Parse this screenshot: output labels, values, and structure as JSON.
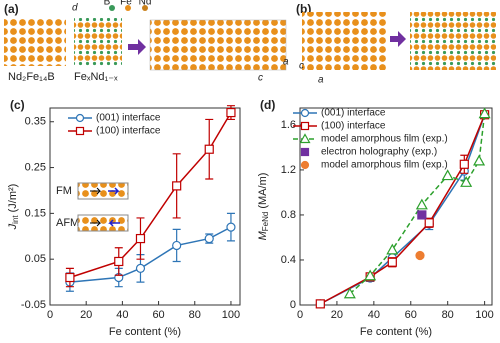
{
  "structures": {
    "a": {
      "label": "(a)",
      "elements": [
        "B",
        "Fe",
        "Nd"
      ],
      "spacing": "d",
      "phases": [
        "Nd₂Fe₁₄B",
        "FeₓNd₁₋ₓ"
      ],
      "axes": [
        "a",
        "c"
      ]
    },
    "b": {
      "label": "(b)",
      "axes": [
        "c",
        "a"
      ]
    }
  },
  "chart_data": [
    {
      "type": "line",
      "panel_label": "(c)",
      "x_label": "Fe content (%)",
      "y_label": {
        "main": "J",
        "sub": "int",
        "unit": "(J/m²)"
      },
      "xlim": [
        0,
        105
      ],
      "xticks": [
        0,
        20,
        40,
        60,
        80,
        100
      ],
      "ylim": [
        -0.05,
        0.38
      ],
      "yticks": [
        -0.05,
        0.05,
        0.15,
        0.25,
        0.35
      ],
      "legend": "upper left",
      "inset": [
        "FM",
        "AFM"
      ],
      "series": [
        {
          "name": "(001) interface",
          "color": "#2e75b6",
          "marker": "circle",
          "filled": false,
          "line_style": "solid",
          "x": [
            11,
            38,
            50,
            70,
            88,
            100
          ],
          "values": [
            0.0,
            0.01,
            0.03,
            0.08,
            0.095,
            0.12
          ],
          "errors": [
            0.02,
            0.02,
            0.03,
            0.035,
            0.01,
            0.03
          ]
        },
        {
          "name": "(100) interface",
          "color": "#c00000",
          "marker": "square",
          "filled": false,
          "line_style": "solid",
          "x": [
            11,
            38,
            50,
            70,
            88,
            100
          ],
          "values": [
            0.01,
            0.045,
            0.095,
            0.21,
            0.29,
            0.37
          ],
          "errors": [
            0.02,
            0.03,
            0.045,
            0.07,
            0.065,
            0.015
          ]
        }
      ]
    },
    {
      "type": "line",
      "panel_label": "(d)",
      "x_label": "Fe content (%)",
      "y_label": {
        "main": "M",
        "sub": "FeNd",
        "unit": "(MA/m)"
      },
      "xlim": [
        0,
        104
      ],
      "xticks": [
        0,
        20,
        40,
        60,
        80,
        100
      ],
      "ylim": [
        0,
        1.75
      ],
      "yticks": [
        0,
        0.4,
        0.8,
        1.2,
        1.6
      ],
      "legend": "upper left",
      "series": [
        {
          "name": "(001) interface",
          "color": "#2e75b6",
          "marker": "circle",
          "filled": false,
          "line_style": "solid",
          "x": [
            11,
            38,
            50,
            70,
            89,
            100
          ],
          "values": [
            0.01,
            0.24,
            0.42,
            0.72,
            1.19,
            1.69
          ],
          "errors": [
            0.02,
            0.03,
            0.05,
            0.05,
            0.08,
            0.02
          ]
        },
        {
          "name": "(100) interface",
          "color": "#c00000",
          "marker": "square",
          "filled": false,
          "line_style": "solid",
          "x": [
            11,
            38,
            50,
            70,
            89,
            100
          ],
          "values": [
            0.01,
            0.25,
            0.38,
            0.73,
            1.25,
            1.69
          ],
          "errors": [
            0.03,
            0.03,
            0.04,
            0.04,
            0.08,
            0.02
          ]
        },
        {
          "name": "model amorphous film (exp.)",
          "color": "#2ca02c",
          "marker": "triangle",
          "filled": false,
          "line_style": "dashed",
          "x": [
            27,
            38,
            50,
            66,
            80,
            90,
            97,
            100
          ],
          "values": [
            0.1,
            0.26,
            0.49,
            0.89,
            1.15,
            1.09,
            1.28,
            1.7
          ]
        },
        {
          "name": "electron holography (exp.)",
          "color": "#7030a0",
          "marker": "square",
          "filled": true,
          "line_style": "none",
          "x": [
            66
          ],
          "values": [
            0.8
          ]
        },
        {
          "name": "model amorphous film (exp.)",
          "color": "#ed7d31",
          "marker": "circle",
          "filled": true,
          "line_style": "none",
          "x": [
            65
          ],
          "values": [
            0.44
          ]
        }
      ]
    }
  ]
}
